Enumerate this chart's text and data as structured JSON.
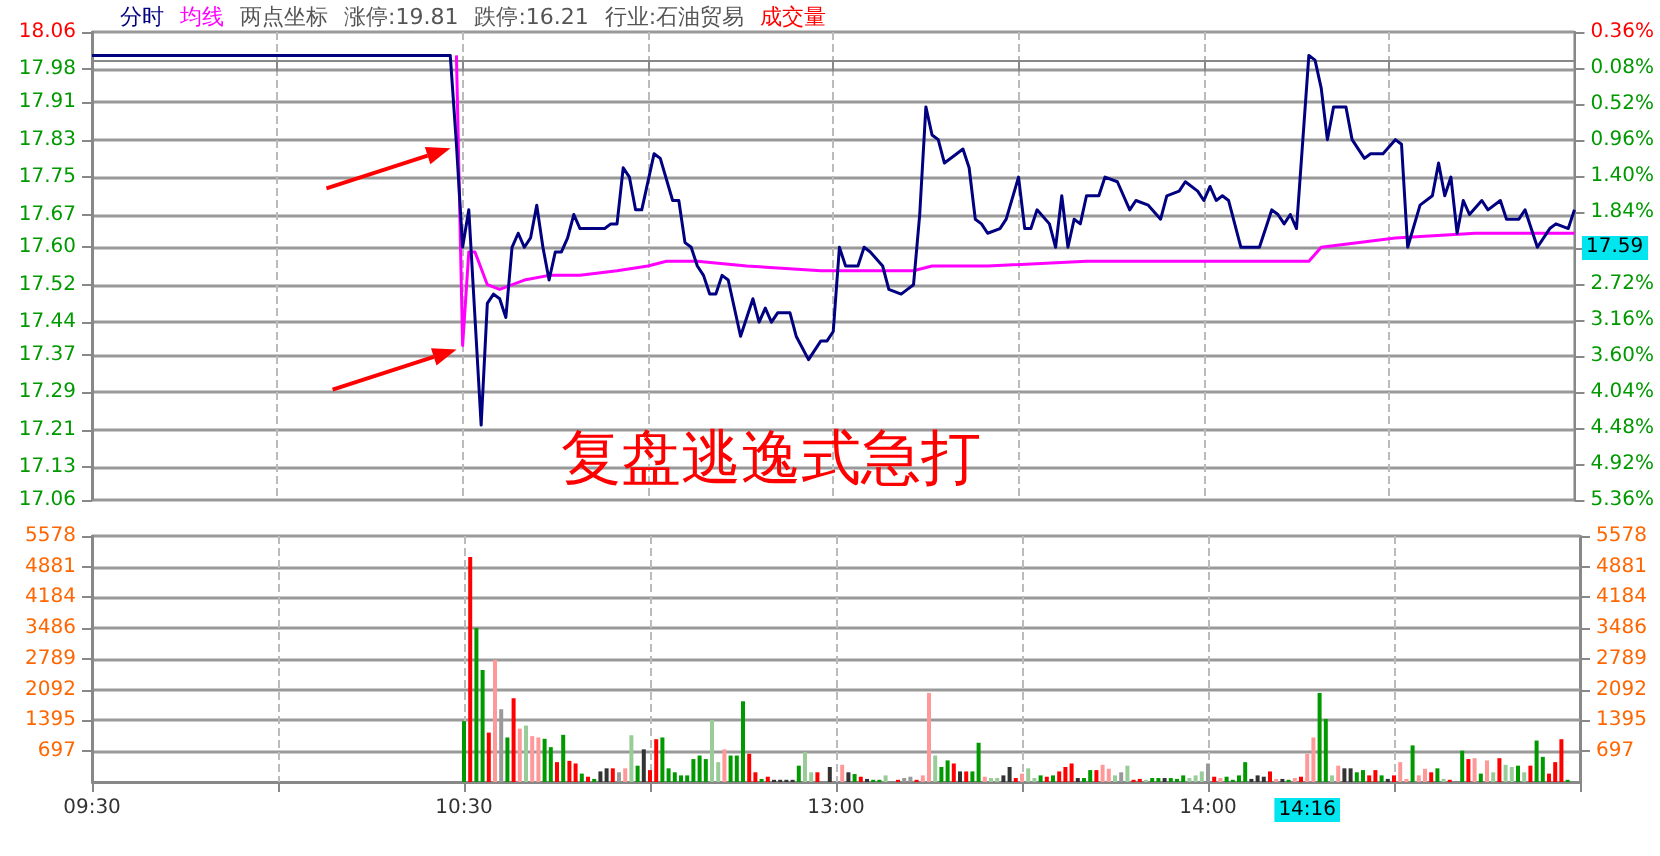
{
  "chart_data": [
    {
      "type": "line",
      "legend": "top left",
      "grid": true,
      "tick_labels": "y",
      "categories": [
        null,
        null,
        null,
        null,
        null,
        null,
        null,
        null,
        null,
        null,
        null,
        null,
        null,
        null,
        null,
        null,
        null,
        null,
        null,
        null,
        null,
        null,
        null,
        null,
        null,
        null,
        null,
        null,
        null,
        null,
        null,
        null,
        null,
        null,
        null,
        null,
        null,
        null,
        null,
        null,
        null,
        null,
        null,
        null,
        null,
        null,
        null,
        null,
        null,
        null,
        null,
        null,
        null,
        null,
        null,
        null,
        null,
        null,
        null,
        null,
        null,
        null,
        null,
        null,
        null,
        null,
        null,
        null,
        null,
        null,
        null,
        null,
        null,
        null,
        null,
        null,
        null,
        null,
        null,
        null,
        null,
        null,
        null,
        null,
        null,
        null,
        null,
        null,
        null,
        null,
        null,
        null,
        null,
        null,
        null,
        null,
        null,
        null,
        null,
        null,
        null,
        null,
        null,
        null,
        null,
        null,
        null,
        null,
        null,
        null,
        null,
        null,
        null,
        null,
        null,
        null,
        null,
        null,
        null,
        null,
        null,
        null,
        null,
        null,
        null,
        null,
        null,
        null,
        null,
        null,
        null,
        null,
        null,
        null,
        null,
        null,
        null,
        null,
        null,
        null,
        null,
        null,
        null,
        null,
        null,
        null,
        null,
        null,
        null,
        null,
        null,
        null,
        null,
        null,
        null,
        null,
        null,
        null,
        null,
        null,
        null,
        null,
        null,
        null,
        null,
        null,
        null,
        null,
        null,
        null,
        null,
        null,
        null,
        null,
        null,
        null,
        null,
        null,
        null,
        null,
        null,
        null,
        null,
        null,
        null,
        null,
        null,
        null,
        null,
        null,
        null,
        null,
        null,
        null,
        null,
        null,
        null,
        null,
        null,
        null,
        null,
        null,
        null,
        null,
        null,
        null,
        null,
        null,
        null,
        null,
        null,
        null,
        null,
        null,
        null,
        null,
        null,
        null,
        null,
        null,
        null,
        null,
        null,
        null,
        null,
        null,
        null,
        null,
        null,
        null,
        null,
        null,
        null,
        null,
        null,
        null,
        null,
        null,
        null,
        null,
        null
      ],
      "ylim": [
        17.06,
        18.06
      ],
      "yticks": [
        17.06,
        17.13,
        17.21,
        17.29,
        17.37,
        17.44,
        17.52,
        {
          "value": 17.6,
          "label": "17.60"
        },
        17.67,
        17.75,
        17.83,
        17.91,
        17.98,
        18.06
      ],
      "y2lim": [
        5.36,
        -0.36
      ],
      "y2ticks": [
        {
          "value": -0.36,
          "label": "0.36%"
        },
        {
          "value": 0.08,
          "label": "0.08%"
        },
        {
          "value": 0.52,
          "label": "0.52%"
        },
        {
          "value": 0.96,
          "label": "0.96%"
        },
        {
          "value": 1.4,
          "label": "1.40%"
        },
        {
          "value": 1.84,
          "label": "1.84%"
        },
        {
          "value": 2.28,
          "label": null
        },
        {
          "value": 2.72,
          "label": "2.72%"
        },
        {
          "value": 3.16,
          "label": "3.16%"
        },
        {
          "value": 3.6,
          "label": "3.60%"
        },
        {
          "value": 4.04,
          "label": "4.04%"
        },
        {
          "value": 4.48,
          "label": "4.48%"
        },
        {
          "value": 4.92,
          "label": "4.92%"
        },
        {
          "value": 5.36,
          "label": "5.36%"
        }
      ],
      "annotations": [
        "两点坐标",
        "涨停:19.81",
        "跌停:16.21",
        "行业:石油贸易",
        "复盘逃逸式急打",
        "17.59"
      ],
      "series": [
        {
          "name": "分时",
          "color": "#000080",
          "values": [
            18.01,
            18.01,
            18.01,
            18.01,
            18.01,
            18.01,
            18.01,
            18.01,
            18.01,
            18.01,
            18.01,
            18.01,
            18.01,
            18.01,
            18.01,
            18.01,
            18.01,
            18.01,
            18.01,
            18.01,
            18.01,
            18.01,
            18.01,
            18.01,
            18.01,
            18.01,
            18.01,
            18.01,
            18.01,
            18.01,
            18.01,
            18.01,
            18.01,
            18.01,
            18.01,
            18.01,
            18.01,
            18.01,
            18.01,
            18.01,
            18.01,
            18.01,
            18.01,
            18.01,
            18.01,
            18.01,
            18.01,
            18.01,
            18.01,
            18.01,
            18.01,
            18.01,
            18.01,
            18.01,
            18.01,
            18.01,
            18.01,
            18.01,
            18.01,
            17.82,
            17.6,
            17.68,
            17.45,
            17.22,
            17.48,
            17.5,
            17.49,
            17.45,
            17.6,
            17.63,
            17.6,
            17.62,
            17.69,
            17.6,
            17.53,
            17.59,
            17.59,
            17.62,
            17.67,
            17.64,
            17.64,
            17.64,
            null,
            17.64,
            17.65,
            17.65,
            17.77,
            17.75,
            17.68,
            17.68,
            null,
            17.8,
            17.79,
            null,
            17.7,
            17.7,
            17.61,
            17.6,
            17.56,
            17.54,
            17.5,
            17.5,
            17.54,
            17.53,
            null,
            17.41,
            null,
            17.49,
            17.44,
            17.47,
            17.44,
            17.46,
            null,
            17.46,
            17.41,
            null,
            17.36,
            null,
            17.4,
            17.4,
            17.42,
            17.6,
            17.56,
            null,
            17.56,
            17.6,
            17.59,
            null,
            17.56,
            17.51,
            null,
            17.5,
            17.51,
            17.52,
            17.67,
            17.9,
            17.84,
            17.83,
            17.78,
            null,
            17.8,
            17.81,
            17.77,
            17.66,
            17.65,
            17.63,
            null,
            17.64,
            17.66,
            null,
            17.75,
            17.64,
            17.64,
            17.68,
            null,
            17.65,
            17.6,
            17.71,
            17.6,
            17.66,
            17.65,
            17.71,
            null,
            17.71,
            17.75,
            null,
            17.74,
            null,
            17.68,
            17.7,
            null,
            17.69,
            null,
            17.66,
            17.71,
            null,
            17.72,
            17.74,
            null,
            17.72,
            17.7,
            17.73,
            17.7,
            17.71,
            17.7,
            null,
            17.6,
            null,
            null,
            17.6,
            null,
            17.68,
            17.67,
            17.65,
            17.67,
            17.64,
            null,
            18.01,
            18.0,
            17.94,
            17.83,
            17.9,
            null,
            17.9,
            17.83,
            null,
            17.79,
            17.8,
            null,
            17.8,
            null,
            17.83,
            17.82,
            17.6,
            null,
            17.69,
            null,
            17.71,
            17.78,
            17.71,
            17.75,
            17.63,
            17.7,
            17.67,
            null,
            17.7,
            17.68,
            null,
            17.7,
            17.66,
            null,
            17.66,
            17.68,
            null,
            17.6,
            null,
            17.64,
            17.65,
            null,
            17.64,
            17.68
          ]
        },
        {
          "name": "均线",
          "color": "#ff00ff",
          "values": [
            null,
            null,
            null,
            null,
            null,
            null,
            null,
            null,
            null,
            null,
            null,
            null,
            null,
            null,
            null,
            null,
            null,
            null,
            null,
            null,
            null,
            null,
            null,
            null,
            null,
            null,
            null,
            null,
            null,
            null,
            null,
            null,
            null,
            null,
            null,
            null,
            null,
            null,
            null,
            null,
            null,
            null,
            null,
            null,
            null,
            null,
            null,
            null,
            null,
            null,
            null,
            null,
            null,
            null,
            null,
            null,
            null,
            null,
            null,
            18.01,
            17.39,
            17.59,
            17.59,
            null,
            17.52,
            null,
            17.51,
            null,
            null,
            null,
            17.53,
            null,
            null,
            null,
            17.54,
            null,
            null,
            null,
            null,
            17.54,
            null,
            null,
            null,
            null,
            null,
            17.55,
            null,
            null,
            null,
            null,
            17.56,
            null,
            null,
            17.57,
            null,
            null,
            null,
            null,
            17.57,
            null,
            null,
            null,
            null,
            null,
            null,
            null,
            17.56,
            null,
            null,
            null,
            null,
            null,
            null,
            null,
            null,
            null,
            null,
            null,
            17.55,
            null,
            null,
            null,
            null,
            null,
            null,
            null,
            null,
            null,
            null,
            null,
            null,
            null,
            null,
            17.55,
            null,
            null,
            17.56,
            null,
            null,
            null,
            null,
            null,
            null,
            null,
            null,
            17.56,
            null,
            null,
            null,
            null,
            null,
            null,
            null,
            null,
            null,
            null,
            null,
            null,
            null,
            null,
            null,
            17.57,
            null,
            null,
            null,
            null,
            null,
            null,
            null,
            null,
            null,
            null,
            null,
            null,
            null,
            null,
            null,
            null,
            null,
            null,
            null,
            null,
            17.57,
            null,
            null,
            null,
            null,
            null,
            null,
            null,
            null,
            null,
            null,
            null,
            null,
            null,
            null,
            17.57,
            null,
            17.6,
            null,
            null,
            null,
            null,
            null,
            null,
            null,
            null,
            null,
            null,
            null,
            17.62,
            null,
            null,
            null,
            null,
            null,
            null,
            null,
            null,
            null,
            null,
            null,
            null,
            17.63,
            null,
            null,
            null,
            null,
            null,
            null,
            null,
            null,
            null,
            null,
            null,
            null,
            null,
            null,
            null,
            17.63
          ]
        }
      ]
    },
    {
      "type": "bar",
      "legend": "top left",
      "grid": true,
      "categories": [
        "09:30",
        null,
        null,
        null,
        null,
        null,
        null,
        null,
        null,
        null,
        null,
        null,
        null,
        null,
        null,
        null,
        null,
        null,
        null,
        null,
        null,
        null,
        null,
        null,
        null,
        null,
        null,
        null,
        null,
        null,
        null,
        null,
        null,
        null,
        null,
        null,
        null,
        null,
        null,
        null,
        null,
        null,
        null,
        null,
        null,
        null,
        null,
        null,
        null,
        null,
        null,
        null,
        null,
        null,
        null,
        null,
        null,
        null,
        null,
        null,
        "10:30",
        null,
        null,
        null,
        null,
        null,
        null,
        null,
        null,
        null,
        null,
        null,
        null,
        null,
        null,
        null,
        null,
        null,
        null,
        null,
        null,
        null,
        null,
        null,
        null,
        null,
        null,
        null,
        null,
        null,
        null,
        null,
        null,
        null,
        null,
        null,
        null,
        null,
        null,
        null,
        null,
        null,
        null,
        null,
        null,
        null,
        null,
        null,
        null,
        null,
        null,
        null,
        null,
        null,
        null,
        null,
        null,
        null,
        null,
        null,
        "13:00",
        null,
        null,
        null,
        null,
        null,
        null,
        null,
        null,
        null,
        null,
        null,
        null,
        null,
        null,
        null,
        null,
        null,
        null,
        null,
        null,
        null,
        null,
        null,
        null,
        null,
        null,
        null,
        null,
        null,
        null,
        null,
        null,
        null,
        null,
        null,
        null,
        null,
        null,
        null,
        null,
        null,
        null,
        null,
        null,
        null,
        null,
        null,
        null,
        null,
        null,
        null,
        null,
        null,
        null,
        null,
        null,
        null,
        null,
        null,
        "14:00",
        null,
        null,
        null,
        null,
        null,
        null,
        null,
        null,
        null,
        null,
        null,
        null,
        null,
        null,
        null,
        "14:16",
        null,
        null,
        null,
        null,
        null,
        null,
        null,
        null,
        null,
        null,
        null,
        null,
        null,
        null,
        null,
        null,
        null,
        null,
        null,
        null,
        null,
        null,
        null,
        null,
        null,
        null,
        null,
        null,
        null,
        null,
        null,
        null,
        null,
        null,
        null,
        null,
        null,
        null,
        null,
        null,
        null,
        null,
        null,
        null
      ],
      "ylim": [
        0,
        5578
      ],
      "yticks": [
        697,
        1395,
        2092,
        2789,
        3486,
        4184,
        4881,
        5578
      ],
      "y2lim": [
        0,
        5578
      ],
      "y2ticks": [
        697,
        1395,
        2092,
        2789,
        3486,
        4184,
        4881,
        5578
      ],
      "series": [
        {
          "name": "成交量",
          "color": "#ff0000",
          "values": [
            null,
            null,
            null,
            null,
            null,
            null,
            null,
            null,
            null,
            null,
            null,
            null,
            null,
            null,
            null,
            null,
            null,
            null,
            null,
            null,
            null,
            null,
            null,
            null,
            null,
            null,
            null,
            null,
            null,
            null,
            null,
            null,
            null,
            null,
            null,
            null,
            null,
            null,
            null,
            null,
            null,
            null,
            null,
            null,
            null,
            null,
            null,
            null,
            null,
            null,
            null,
            null,
            null,
            null,
            null,
            null,
            null,
            null,
            null,
            null,
            1380,
            5100,
            3490,
            2540,
            1120,
            2770,
            1650,
            1010,
            1900,
            1210,
            1280,
            1040,
            1010,
            980,
            790,
            450,
            1070,
            480,
            420,
            190,
            120,
            70,
            240,
            310,
            310,
            220,
            310,
            1060,
            370,
            740,
            270,
            970,
            1010,
            310,
            220,
            150,
            150,
            520,
            600,
            520,
            1410,
            450,
            740,
            600,
            600,
            1830,
            640,
            220,
            70,
            120,
            50,
            50,
            50,
            50,
            370,
            680,
            220,
            220,
            null,
            340,
            null,
            390,
            220,
            180,
            120,
            70,
            50,
            50,
            150,
            null,
            50,
            90,
            120,
            50,
            150,
            2020,
            600,
            340,
            490,
            420,
            240,
            240,
            240,
            890,
            120,
            90,
            90,
            150,
            340,
            90,
            190,
            310,
            90,
            150,
            120,
            150,
            240,
            340,
            420,
            90,
            90,
            270,
            270,
            390,
            300,
            150,
            220,
            370,
            50,
            70,
            50,
            90,
            90,
            90,
            90,
            70,
            150,
            90,
            150,
            240,
            420,
            120,
            90,
            120,
            50,
            150,
            450,
            70,
            150,
            120,
            240,
            70,
            70,
            50,
            90,
            120,
            640,
            1010,
            2020,
            1430,
            150,
            370,
            310,
            310,
            220,
            270,
            150,
            270,
            150,
            70,
            150,
            450,
            70,
            830,
            150,
            300,
            220,
            310,
            70,
            50,
            null,
            710,
            520,
            540,
            190,
            490,
            220,
            540,
            390,
            340,
            370,
            220,
            370,
            940,
            570,
            190,
            450,
            970,
            50,
            null,
            null
          ],
          "colors": [
            null,
            null,
            null,
            null,
            null,
            null,
            null,
            null,
            null,
            null,
            null,
            null,
            null,
            null,
            null,
            null,
            null,
            null,
            null,
            null,
            null,
            null,
            null,
            null,
            null,
            null,
            null,
            null,
            null,
            null,
            null,
            null,
            null,
            null,
            null,
            null,
            null,
            null,
            null,
            null,
            null,
            null,
            null,
            null,
            null,
            null,
            null,
            null,
            null,
            null,
            null,
            null,
            null,
            null,
            null,
            null,
            null,
            null,
            null,
            null,
            "#009900",
            "#ff0000",
            "#009900",
            "#009900",
            "#ff0000",
            "#ff9999",
            "#999999",
            "#009900",
            "#ff0000",
            "#ff9999",
            "#99cc99",
            "#ff9999",
            "#ff9999",
            "#009900",
            "#009900",
            "#ff0000",
            "#009900",
            "#ff0000",
            "#ff0000",
            "#009900",
            "#ff0000",
            "#009900",
            "#333333",
            "#333333",
            "#ff0000",
            "#999999",
            "#ff9999",
            "#99cc99",
            "#009900",
            "#333333",
            "#ff0000",
            "#ff0000",
            "#009900",
            "#009900",
            "#009900",
            "#009900",
            "#009900",
            "#009900",
            "#009900",
            "#009900",
            "#99cc99",
            "#99cc99",
            "#ff9999",
            "#009900",
            "#009900",
            "#009900",
            "#ff0000",
            "#ff0000",
            "#009900",
            "#ff0000",
            "#333333",
            "#333333",
            "#333333",
            "#333333",
            "#009900",
            "#99cc99",
            "#99cc99",
            "#ff0000",
            null,
            "#333333",
            null,
            "#ff9999",
            "#333333",
            "#009900",
            "#ff0000",
            "#333333",
            "#009900",
            "#009900",
            "#99cc99",
            null,
            "#ff0000",
            "#999999",
            "#999999",
            "#ff0000",
            "#ff9999",
            "#ff9999",
            "#99cc99",
            "#009900",
            "#009900",
            "#ff0000",
            "#333333",
            "#ff0000",
            "#009900",
            "#009900",
            "#ff9999",
            "#99cc99",
            "#99cc99",
            "#333333",
            "#333333",
            "#ff0000",
            "#ff9999",
            "#99cc99",
            "#99cc99",
            "#009900",
            "#ff0000",
            "#009900",
            "#ff0000",
            "#ff0000",
            "#ff0000",
            "#333333",
            "#009900",
            "#009900",
            "#ff0000",
            "#ff9999",
            "#ff9999",
            "#99cc99",
            "#999999",
            "#99cc99",
            "#ff0000",
            "#ff0000",
            "#99cc99",
            "#009900",
            "#009900",
            "#333333",
            "#009900",
            "#009900",
            "#009900",
            "#99cc99",
            "#99cc99",
            "#99cc99",
            "#999999",
            "#ff0000",
            "#ff9999",
            "#009900",
            "#009900",
            "#009900",
            "#009900",
            "#333333",
            "#333333",
            "#333333",
            "#ff0000",
            "#ff9999",
            "#333333",
            "#009900",
            "#ff9999",
            "#ff0000",
            "#ff9999",
            "#ff9999",
            "#009900",
            "#009900",
            "#99cc99",
            "#ff9999",
            "#333333",
            "#333333",
            "#009900",
            "#009900",
            "#ff0000",
            "#ff0000",
            "#009900",
            "#333333",
            "#ff0000",
            "#ff9999",
            "#ff9999",
            "#009900",
            "#ff9999",
            "#ff9999",
            "#ff0000",
            "#009900",
            "#99cc99",
            "#ff0000",
            null,
            "#009900",
            "#ff0000",
            "#ff9999",
            "#009900",
            "#ff9999",
            "#99cc99",
            "#ff0000",
            "#99cc99",
            "#99cc99",
            "#009900",
            "#99cc99",
            "#ff0000",
            "#009900",
            "#009900",
            "#ff0000",
            "#ff0000",
            "#ff0000",
            "#009900",
            null,
            null
          ]
        }
      ]
    }
  ]
}
